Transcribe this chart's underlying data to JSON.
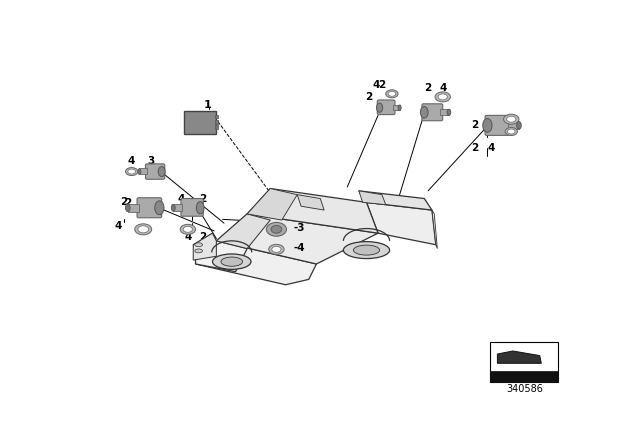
{
  "bg_color": "#ffffff",
  "line_color": "#000000",
  "part_number": "340586",
  "fig_width": 6.4,
  "fig_height": 4.48,
  "car": {
    "facecolor": "#f5f5f5",
    "edgecolor": "#333333",
    "lw": 0.9
  },
  "sensor_body_color": "#aaaaaa",
  "sensor_face_color": "#888888",
  "sensor_dark_color": "#777777",
  "ring_color": "#bbbbbb",
  "module_color": "#888888",
  "module_inner_color": "#999999",
  "label_fontsize": 7.5
}
